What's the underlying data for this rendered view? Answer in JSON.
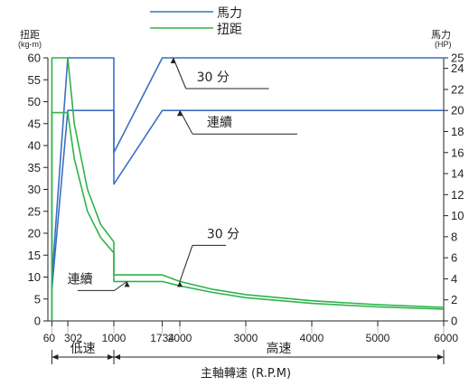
{
  "chart_data": {
    "type": "line",
    "legend": {
      "placement": "top-center",
      "entries": [
        {
          "label": "馬力",
          "color": "#3a6fc4"
        },
        {
          "label": "扭距",
          "color": "#2fb34a"
        }
      ]
    },
    "left_axis": {
      "label": "扭距",
      "unit": "(kg-m)",
      "ylim": [
        0,
        60
      ],
      "ticks": [
        0,
        5,
        10,
        15,
        20,
        25,
        30,
        35,
        40,
        45,
        50,
        55,
        60
      ]
    },
    "right_axis": {
      "label": "馬力",
      "unit": "(HP)",
      "ylim": [
        0,
        25
      ],
      "ticks": [
        0,
        2,
        4,
        6,
        8,
        10,
        12,
        14,
        16,
        18,
        20,
        22,
        24,
        25
      ]
    },
    "x_axis": {
      "label": "主軸轉速 (R.P.M)",
      "xlim": [
        0,
        6000
      ],
      "ticks": [
        {
          "value": 60,
          "label": "60"
        },
        {
          "value": 302,
          "label": "302"
        },
        {
          "value": 1000,
          "label": "1000"
        },
        {
          "value": 1734,
          "label": "1734"
        },
        {
          "value": 2000,
          "label": "2000"
        },
        {
          "value": 3000,
          "label": "3000"
        },
        {
          "value": 4000,
          "label": "4000"
        },
        {
          "value": 5000,
          "label": "5000"
        },
        {
          "value": 6000,
          "label": "6000"
        }
      ]
    },
    "ranges": [
      {
        "label": "低速",
        "from": 0,
        "to": 1000
      },
      {
        "label": "高速",
        "from": 1000,
        "to": 6000
      }
    ],
    "series": [
      {
        "kind": "power",
        "axis": "right",
        "color": "#3a6fc4",
        "points": [
          [
            60,
            4
          ],
          [
            302,
            25
          ],
          [
            1000,
            25
          ],
          [
            1000,
            16
          ],
          [
            1734,
            25
          ],
          [
            6000,
            25
          ]
        ]
      },
      {
        "kind": "power",
        "axis": "right",
        "color": "#3a6fc4",
        "points": [
          [
            60,
            3
          ],
          [
            302,
            20
          ],
          [
            1000,
            20
          ],
          [
            1000,
            13
          ],
          [
            1734,
            20
          ],
          [
            6000,
            20
          ]
        ]
      },
      {
        "kind": "torque",
        "axis": "left",
        "color": "#2fb34a",
        "points": [
          [
            60,
            0
          ],
          [
            60,
            60
          ],
          [
            302,
            60
          ],
          [
            400,
            45
          ],
          [
            600,
            30
          ],
          [
            800,
            22
          ],
          [
            1000,
            18
          ],
          [
            1000,
            10.5
          ],
          [
            1734,
            10.5
          ],
          [
            2000,
            9
          ],
          [
            2500,
            7.2
          ],
          [
            3000,
            6
          ],
          [
            4000,
            4.6
          ],
          [
            5000,
            3.7
          ],
          [
            6000,
            3.1
          ]
        ]
      },
      {
        "kind": "torque",
        "axis": "left",
        "color": "#2fb34a",
        "points": [
          [
            60,
            0
          ],
          [
            60,
            47.5
          ],
          [
            302,
            47.5
          ],
          [
            400,
            37
          ],
          [
            600,
            25
          ],
          [
            800,
            19
          ],
          [
            1000,
            15.5
          ],
          [
            1000,
            9
          ],
          [
            1734,
            9
          ],
          [
            2000,
            8
          ],
          [
            2500,
            6.5
          ],
          [
            3000,
            5.3
          ],
          [
            4000,
            4
          ],
          [
            5000,
            3.2
          ],
          [
            6000,
            2.7
          ]
        ]
      }
    ],
    "annotations": [
      {
        "text": "30 分",
        "series_index": 0,
        "x": 1900,
        "line_end": 3350
      },
      {
        "text": "連續",
        "series_index": 1,
        "x": 2000,
        "line_end": 3780
      },
      {
        "text": "30 分",
        "series_index": 2,
        "x": 2000,
        "line_end": 2700
      },
      {
        "text": "連續",
        "series_index": 3,
        "x": 1200,
        "line_end": 450
      }
    ]
  }
}
